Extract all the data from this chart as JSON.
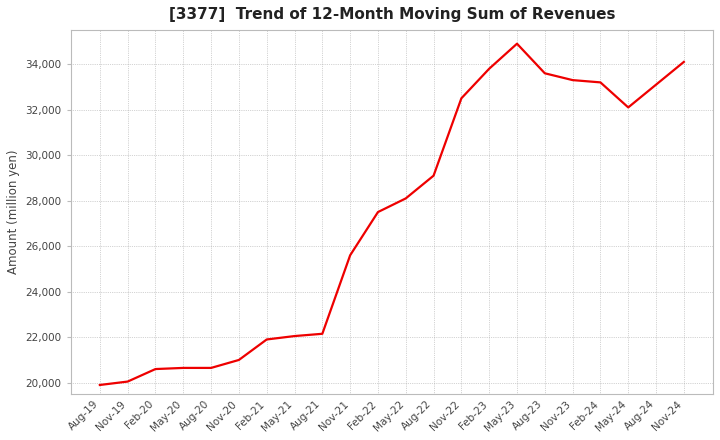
{
  "title": "[3377]  Trend of 12-Month Moving Sum of Revenues",
  "ylabel": "Amount (million yen)",
  "ylim": [
    19500,
    35500
  ],
  "yticks": [
    20000,
    22000,
    24000,
    26000,
    28000,
    30000,
    32000,
    34000
  ],
  "line_color": "#ee0000",
  "bg_color": "#ffffff",
  "plot_bg_color": "#ffffff",
  "grid_color": "#aaaaaa",
  "x_labels": [
    "Aug-19",
    "Nov-19",
    "Feb-20",
    "May-20",
    "Aug-20",
    "Nov-20",
    "Feb-21",
    "May-21",
    "Aug-21",
    "Nov-21",
    "Feb-22",
    "May-22",
    "Aug-22",
    "Nov-22",
    "Feb-23",
    "May-23",
    "Aug-23",
    "Nov-23",
    "Feb-24",
    "May-24",
    "Aug-24",
    "Nov-24"
  ],
  "values": [
    19900,
    20050,
    20600,
    20650,
    20650,
    21000,
    21900,
    22050,
    22150,
    25600,
    27500,
    28100,
    29100,
    32500,
    33800,
    34900,
    33600,
    33300,
    33200,
    32100,
    33100,
    34100
  ],
  "title_fontsize": 11,
  "label_fontsize": 8.5,
  "tick_fontsize": 7.5
}
